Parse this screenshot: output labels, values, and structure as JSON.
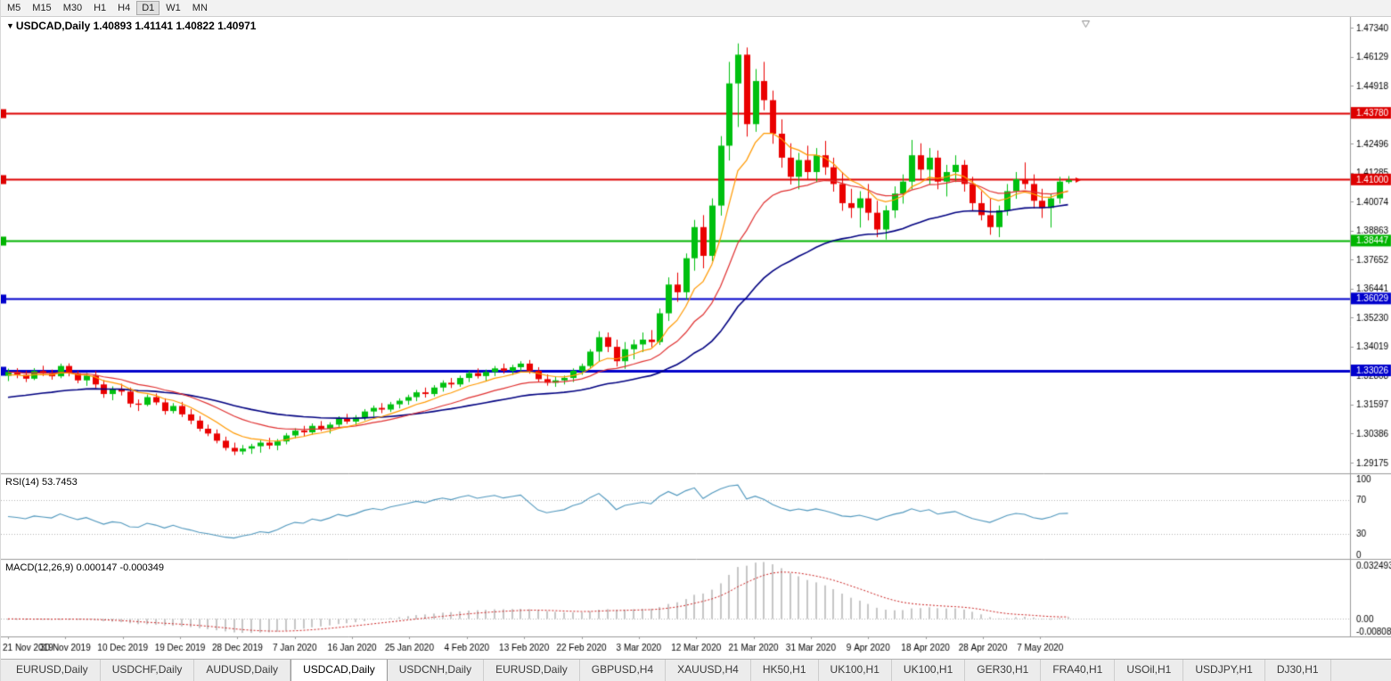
{
  "toolbar": {
    "timeframes": [
      "M5",
      "M15",
      "M30",
      "H1",
      "H4",
      "D1",
      "W1",
      "MN"
    ],
    "active": "D1"
  },
  "chart_header": {
    "arrow": "▼",
    "symbol_period": "USDCAD,Daily",
    "ohlc": "1.40893 1.41141 1.40822 1.40971"
  },
  "tabs": {
    "items": [
      "EURUSD,Daily",
      "USDCHF,Daily",
      "AUDUSD,Daily",
      "USDCAD,Daily",
      "USDCNH,Daily",
      "EURUSD,Daily",
      "GBPUSD,H4",
      "XAUUSD,H4",
      "HK50,H1",
      "UK100,H1",
      "UK100,H1",
      "GER30,H1",
      "FRA40,H1",
      "USOil,H1",
      "USDJPY,H1",
      "DJ30,H1"
    ],
    "active_index": 3
  },
  "chart_data": {
    "type": "candlestick",
    "symbol": "USDCAD",
    "timeframe": "Daily",
    "ohlc_current": {
      "open": "1.40893",
      "high": "1.41141",
      "low": "1.40822",
      "close": "1.40971"
    },
    "price_axis_ticks": [
      "1.47340",
      "1.46129",
      "1.44918",
      "1.43707",
      "1.42496",
      "1.41285",
      "1.40074",
      "1.38863",
      "1.37652",
      "1.36441",
      "1.35230",
      "1.34019",
      "1.32808",
      "1.31597",
      "1.30386",
      "1.29175"
    ],
    "price_axis_range": {
      "top": 1.4734,
      "bottom": 1.29175
    },
    "date_labels": [
      "21 Nov 2019",
      "30 Nov 2019",
      "10 Dec 2019",
      "19 Dec 2019",
      "28 Dec 2019",
      "7 Jan 2020",
      "16 Jan 2020",
      "25 Jan 2020",
      "4 Feb 2020",
      "13 Feb 2020",
      "22 Feb 2020",
      "3 Mar 2020",
      "12 Mar 2020",
      "21 Mar 2020",
      "31 Mar 2020",
      "9 Apr 2020",
      "18 Apr 2020",
      "28 Apr 2020",
      "7 May 2020"
    ],
    "horizontal_lines": [
      {
        "value": 1.4378,
        "label": "1.43780",
        "color": "#dd0000",
        "width": 2
      },
      {
        "value": 1.41,
        "label": "1.41000",
        "color": "#dd0000",
        "width": 2
      },
      {
        "value": 1.38447,
        "label": "1.38447",
        "color": "#00b400",
        "width": 2
      },
      {
        "value": 1.36029,
        "label": "1.36029",
        "color": "#0000cc",
        "width": 2
      },
      {
        "value": 1.33026,
        "label": "1.33026",
        "color": "#0000cc",
        "width": 3
      }
    ],
    "colors": {
      "up": "#00c010",
      "down": "#ea0000",
      "background": "#ffffff",
      "axis_text": "#000000",
      "separator": "#9a9a9a"
    },
    "indicators": {
      "moving_averages": [
        {
          "name": "fast",
          "period": 8,
          "seed": 1.328,
          "color": "#ff9900"
        },
        {
          "name": "medium",
          "period": 18,
          "seed": 1.3295,
          "color": "#e03030"
        },
        {
          "name": "slow",
          "period": 40,
          "seed": 1.3185,
          "color": "#000080"
        }
      ],
      "rsi": {
        "label": "RSI(14)",
        "value": "53.7453",
        "period": 14,
        "axis": [
          "100",
          "70",
          "30",
          "0"
        ],
        "color": "#4f97bd",
        "level_high": 70,
        "level_low": 30
      },
      "macd": {
        "label": "MACD(12,26,9)",
        "value": "0.000147 -0.000349",
        "fast": 12,
        "slow": 26,
        "signal": 9,
        "axis_top": "0.032493",
        "axis_zero": "0.00",
        "axis_bottom": "-0.00808",
        "hist_color": "#c6c6c6",
        "signal_color": "#cc2222"
      }
    },
    "candles": [
      [
        1.328,
        1.331,
        1.3258,
        1.3296
      ],
      [
        1.3296,
        1.3312,
        1.327,
        1.3284
      ],
      [
        1.3284,
        1.3301,
        1.3254,
        1.3268
      ],
      [
        1.3268,
        1.3312,
        1.3262,
        1.33
      ],
      [
        1.33,
        1.3322,
        1.3279,
        1.3289
      ],
      [
        1.3289,
        1.3306,
        1.3264,
        1.3278
      ],
      [
        1.3278,
        1.3331,
        1.327,
        1.3321
      ],
      [
        1.3321,
        1.3332,
        1.3278,
        1.329
      ],
      [
        1.329,
        1.3301,
        1.3249,
        1.3261
      ],
      [
        1.3261,
        1.3292,
        1.3238,
        1.3281
      ],
      [
        1.3281,
        1.33,
        1.3228,
        1.3244
      ],
      [
        1.3244,
        1.3262,
        1.3188,
        1.3204
      ],
      [
        1.3204,
        1.3236,
        1.3178,
        1.3226
      ],
      [
        1.3226,
        1.3247,
        1.3198,
        1.3214
      ],
      [
        1.3214,
        1.3231,
        1.3148,
        1.3164
      ],
      [
        1.3164,
        1.3181,
        1.3133,
        1.3159
      ],
      [
        1.3159,
        1.3202,
        1.3153,
        1.3191
      ],
      [
        1.3191,
        1.3206,
        1.3158,
        1.3169
      ],
      [
        1.3169,
        1.3186,
        1.3118,
        1.3133
      ],
      [
        1.3133,
        1.3166,
        1.3123,
        1.3154
      ],
      [
        1.3154,
        1.3171,
        1.3108,
        1.3119
      ],
      [
        1.3119,
        1.3141,
        1.3078,
        1.3093
      ],
      [
        1.3093,
        1.3112,
        1.3048,
        1.3059
      ],
      [
        1.3059,
        1.3076,
        1.3028,
        1.3039
      ],
      [
        1.3039,
        1.3056,
        1.2998,
        1.3009
      ],
      [
        1.3009,
        1.3026,
        1.2968,
        1.2979
      ],
      [
        1.2979,
        1.3001,
        1.2949,
        1.2964
      ],
      [
        1.2964,
        1.2991,
        1.2951,
        1.2976
      ],
      [
        1.2976,
        1.2996,
        1.2954,
        1.2986
      ],
      [
        1.2986,
        1.3011,
        1.2959,
        1.3001
      ],
      [
        1.3001,
        1.3021,
        1.2974,
        1.2989
      ],
      [
        1.2989,
        1.3016,
        1.2969,
        1.3006
      ],
      [
        1.3006,
        1.3041,
        1.2994,
        1.3031
      ],
      [
        1.3031,
        1.3061,
        1.3019,
        1.3051
      ],
      [
        1.3051,
        1.3071,
        1.3029,
        1.3044
      ],
      [
        1.3044,
        1.3081,
        1.3034,
        1.3071
      ],
      [
        1.3071,
        1.3091,
        1.3049,
        1.3059
      ],
      [
        1.3059,
        1.3086,
        1.3039,
        1.3076
      ],
      [
        1.3076,
        1.3111,
        1.3064,
        1.3101
      ],
      [
        1.3101,
        1.3121,
        1.3079,
        1.3089
      ],
      [
        1.3089,
        1.3116,
        1.3074,
        1.3106
      ],
      [
        1.3106,
        1.3141,
        1.3094,
        1.3131
      ],
      [
        1.3131,
        1.3156,
        1.3109,
        1.3146
      ],
      [
        1.3146,
        1.3166,
        1.3124,
        1.3139
      ],
      [
        1.3139,
        1.3171,
        1.3129,
        1.3161
      ],
      [
        1.3161,
        1.3186,
        1.3144,
        1.3176
      ],
      [
        1.3176,
        1.3201,
        1.3159,
        1.3191
      ],
      [
        1.3191,
        1.3221,
        1.3174,
        1.3211
      ],
      [
        1.3211,
        1.3231,
        1.3189,
        1.3204
      ],
      [
        1.3204,
        1.3241,
        1.3194,
        1.3231
      ],
      [
        1.3231,
        1.3261,
        1.3214,
        1.3251
      ],
      [
        1.3251,
        1.3271,
        1.3229,
        1.3244
      ],
      [
        1.3244,
        1.3281,
        1.3234,
        1.3271
      ],
      [
        1.3271,
        1.3301,
        1.3254,
        1.3291
      ],
      [
        1.3291,
        1.3311,
        1.3269,
        1.3279
      ],
      [
        1.3279,
        1.3306,
        1.3259,
        1.3296
      ],
      [
        1.3296,
        1.3321,
        1.3279,
        1.3311
      ],
      [
        1.3311,
        1.3331,
        1.3289,
        1.3301
      ],
      [
        1.3301,
        1.3326,
        1.3284,
        1.3316
      ],
      [
        1.3316,
        1.3341,
        1.3299,
        1.3331
      ],
      [
        1.3331,
        1.3346,
        1.3289,
        1.3301
      ],
      [
        1.3301,
        1.3316,
        1.3254,
        1.3266
      ],
      [
        1.3266,
        1.3286,
        1.3239,
        1.3251
      ],
      [
        1.3251,
        1.3276,
        1.3234,
        1.3261
      ],
      [
        1.3261,
        1.3281,
        1.3244,
        1.3271
      ],
      [
        1.3271,
        1.3311,
        1.3254,
        1.3301
      ],
      [
        1.3301,
        1.3331,
        1.3284,
        1.3321
      ],
      [
        1.3321,
        1.3391,
        1.3311,
        1.3381
      ],
      [
        1.3381,
        1.3466,
        1.3341,
        1.3441
      ],
      [
        1.3441,
        1.3461,
        1.3379,
        1.3401
      ],
      [
        1.3401,
        1.3431,
        1.3319,
        1.3341
      ],
      [
        1.3341,
        1.3421,
        1.3309,
        1.3391
      ],
      [
        1.3391,
        1.3431,
        1.3349,
        1.3411
      ],
      [
        1.3411,
        1.3461,
        1.3379,
        1.3431
      ],
      [
        1.3431,
        1.3471,
        1.3399,
        1.3421
      ],
      [
        1.3421,
        1.3561,
        1.3409,
        1.3541
      ],
      [
        1.3541,
        1.3691,
        1.3509,
        1.3661
      ],
      [
        1.3661,
        1.3711,
        1.3589,
        1.3629
      ],
      [
        1.3629,
        1.3791,
        1.3599,
        1.3771
      ],
      [
        1.3771,
        1.3931,
        1.3719,
        1.3901
      ],
      [
        1.3901,
        1.3951,
        1.3729,
        1.3781
      ],
      [
        1.3781,
        1.4021,
        1.3759,
        1.3991
      ],
      [
        1.3991,
        1.4281,
        1.3949,
        1.4241
      ],
      [
        1.4241,
        1.4591,
        1.4179,
        1.4501
      ],
      [
        1.4501,
        1.4668,
        1.4319,
        1.4621
      ],
      [
        1.4621,
        1.4651,
        1.4279,
        1.4331
      ],
      [
        1.4331,
        1.4561,
        1.4299,
        1.4511
      ],
      [
        1.4511,
        1.4591,
        1.4389,
        1.4431
      ],
      [
        1.4431,
        1.4471,
        1.4249,
        1.4291
      ],
      [
        1.4291,
        1.4351,
        1.4149,
        1.4191
      ],
      [
        1.4191,
        1.4251,
        1.4079,
        1.4111
      ],
      [
        1.4111,
        1.4211,
        1.4059,
        1.4181
      ],
      [
        1.4181,
        1.4241,
        1.4099,
        1.4131
      ],
      [
        1.4131,
        1.4231,
        1.4089,
        1.4201
      ],
      [
        1.4201,
        1.4261,
        1.4119,
        1.4151
      ],
      [
        1.4151,
        1.4191,
        1.4049,
        1.4081
      ],
      [
        1.4081,
        1.4131,
        1.3969,
        1.4001
      ],
      [
        1.4001,
        1.4061,
        1.3939,
        1.3981
      ],
      [
        1.3981,
        1.4051,
        1.3899,
        1.4021
      ],
      [
        1.4021,
        1.4081,
        1.3929,
        1.3961
      ],
      [
        1.3961,
        1.4011,
        1.3859,
        1.3891
      ],
      [
        1.3891,
        1.3991,
        1.3849,
        1.3971
      ],
      [
        1.3971,
        1.4071,
        1.3939,
        1.4041
      ],
      [
        1.4041,
        1.4121,
        1.3999,
        1.4091
      ],
      [
        1.4091,
        1.4265,
        1.4059,
        1.4201
      ],
      [
        1.4201,
        1.4251,
        1.4099,
        1.4141
      ],
      [
        1.4141,
        1.4231,
        1.4079,
        1.4191
      ],
      [
        1.4191,
        1.4221,
        1.4059,
        1.4091
      ],
      [
        1.4091,
        1.4161,
        1.4029,
        1.4131
      ],
      [
        1.4131,
        1.4201,
        1.4089,
        1.4161
      ],
      [
        1.4161,
        1.4181,
        1.4049,
        1.4081
      ],
      [
        1.4081,
        1.4111,
        1.3969,
        1.4001
      ],
      [
        1.4001,
        1.4051,
        1.3929,
        1.3951
      ],
      [
        1.3951,
        1.4021,
        1.3869,
        1.3901
      ],
      [
        1.3901,
        1.3991,
        1.3859,
        1.3971
      ],
      [
        1.3971,
        1.4081,
        1.3949,
        1.4051
      ],
      [
        1.4051,
        1.4131,
        1.4019,
        1.4101
      ],
      [
        1.4101,
        1.4171,
        1.4059,
        1.4081
      ],
      [
        1.4081,
        1.4121,
        1.3979,
        1.4011
      ],
      [
        1.4011,
        1.4061,
        1.3939,
        1.3981
      ],
      [
        1.3981,
        1.4041,
        1.3899,
        1.4021
      ],
      [
        1.4021,
        1.4111,
        1.3999,
        1.4091
      ],
      [
        1.40893,
        1.41141,
        1.40822,
        1.40971
      ]
    ]
  }
}
